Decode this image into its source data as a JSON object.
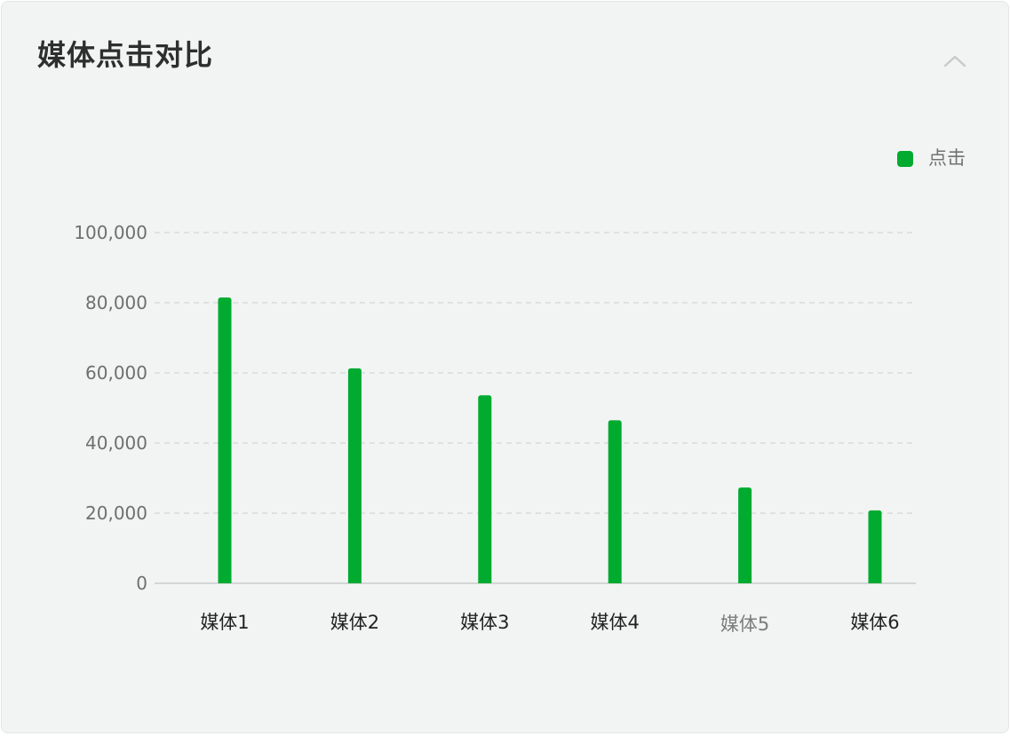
{
  "card": {
    "title": "媒体点击对比",
    "collapse_icon": "chevron-up-icon"
  },
  "colors": {
    "bar": "#00ab2f",
    "grid": "#d2d5d4",
    "axis": "#c9cccb"
  },
  "chart_data": {
    "type": "bar",
    "title": "媒体点击对比",
    "categories": [
      "媒体1",
      "媒体2",
      "媒体3",
      "媒体4",
      "媒体5",
      "媒体6"
    ],
    "series": [
      {
        "name": "点击",
        "values": [
          81500,
          61300,
          53600,
          46500,
          27300,
          20800
        ]
      }
    ],
    "ylim": [
      0,
      100000
    ],
    "yticks": [
      0,
      20000,
      40000,
      60000,
      80000,
      100000
    ],
    "ytick_labels": [
      "0",
      "20,000",
      "40,000",
      "60,000",
      "80,000",
      "100,000"
    ],
    "grid": true,
    "legend": "top-right",
    "xlabel": "",
    "ylabel": ""
  }
}
